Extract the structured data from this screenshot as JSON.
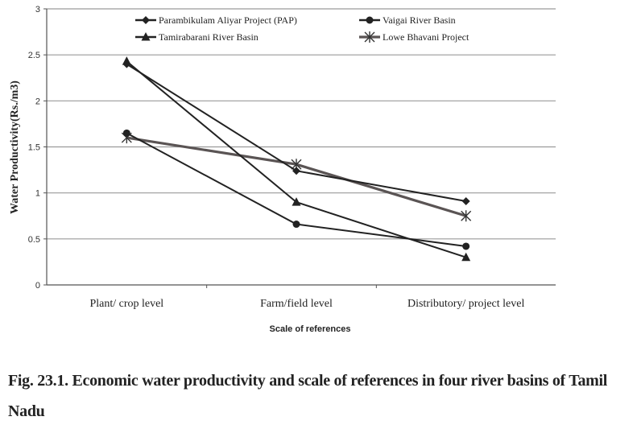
{
  "chart_data": {
    "type": "line",
    "title": "",
    "xlabel": "Scale of references",
    "ylabel": "Water Productivity(Rs./m3)",
    "ylim": [
      0,
      3
    ],
    "yticks": [
      "0",
      "0.5",
      "1",
      "1.5",
      "2",
      "2.5",
      "3"
    ],
    "ytick_values": [
      0,
      0.5,
      1,
      1.5,
      2,
      2.5,
      3
    ],
    "grid": true,
    "legend_position": "top",
    "categories": [
      "Plant/ crop level",
      "Farm/field level",
      "Distributory/ project level"
    ],
    "series": [
      {
        "name": "Parambikulam Aliyar Project (PAP)",
        "marker": "diamond",
        "color": "#222222",
        "values": [
          2.4,
          1.24,
          0.91
        ]
      },
      {
        "name": "Vaigai River Basin",
        "marker": "circle",
        "color": "#222222",
        "values": [
          1.65,
          0.66,
          0.42
        ]
      },
      {
        "name": "Tamirabarani River Basin",
        "marker": "triangle",
        "color": "#222222",
        "values": [
          2.43,
          0.9,
          0.3
        ]
      },
      {
        "name": "Lowe Bhavani Project",
        "marker": "asterisk",
        "color": "#5a5454",
        "values": [
          1.6,
          1.31,
          0.75
        ]
      }
    ]
  },
  "caption": {
    "text": "Fig. 23.1. Economic water productivity and scale of references in four river basins of Tamil Nadu"
  }
}
